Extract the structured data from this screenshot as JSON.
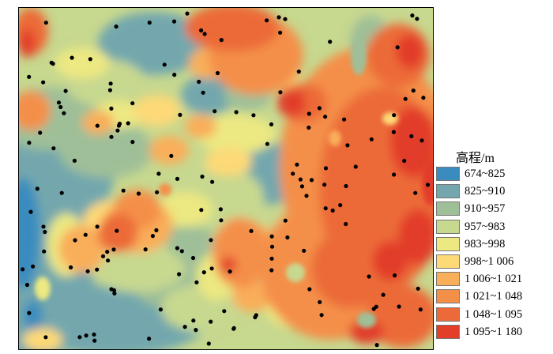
{
  "legend": {
    "title": "高程/m",
    "classes": [
      {
        "label": "674~825",
        "color": "#3a8cbe"
      },
      {
        "label": "825~910",
        "color": "#73a7ad"
      },
      {
        "label": "910~957",
        "color": "#9fbf98"
      },
      {
        "label": "957~983",
        "color": "#c7d88f"
      },
      {
        "label": "983~998",
        "color": "#ece882"
      },
      {
        "label": "998~1 006",
        "color": "#fdd977"
      },
      {
        "label": "1 006~1 021",
        "color": "#f9ae5a"
      },
      {
        "label": "1 021~1 048",
        "color": "#f48f48"
      },
      {
        "label": "1 048~1 095",
        "color": "#ec6a38"
      },
      {
        "label": "1 095~1 180",
        "color": "#e23e2a"
      }
    ]
  },
  "map": {
    "point_color": "#000000",
    "sample_point_count": 170
  }
}
